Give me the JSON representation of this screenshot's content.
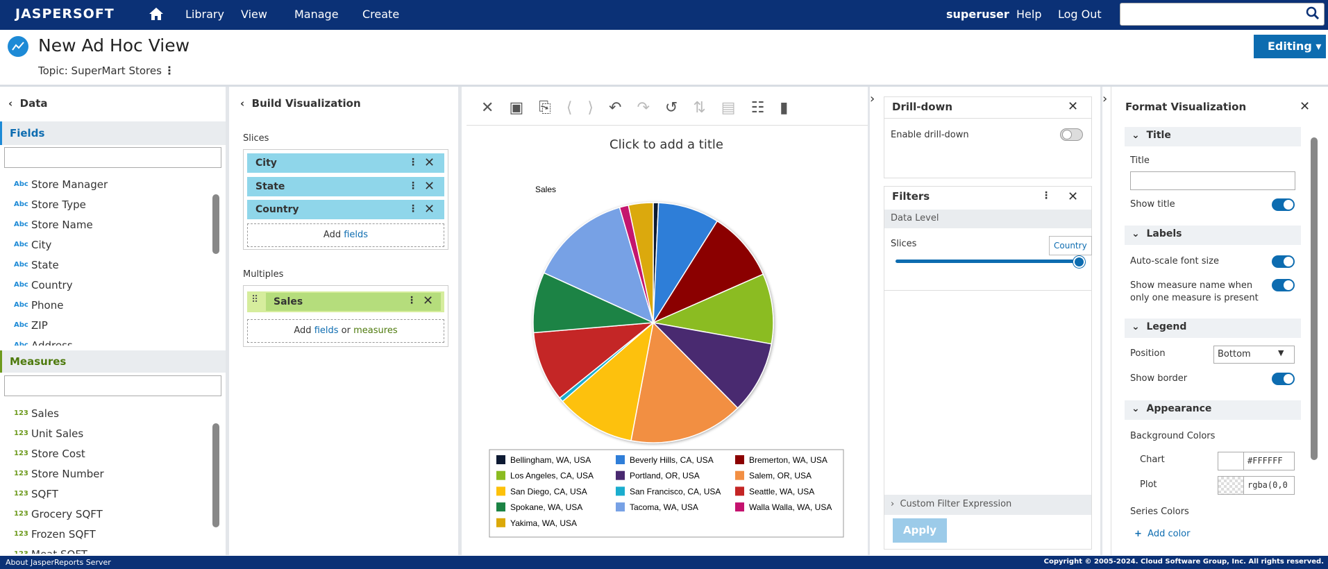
{
  "nav": {
    "brand": "JASPERSOFT",
    "items": [
      "Library",
      "View",
      "Manage",
      "Create"
    ],
    "user": "superuser",
    "help": "Help",
    "logout": "Log Out"
  },
  "header": {
    "title": "New Ad Hoc View",
    "topic": "Topic: SuperMart Stores",
    "mode": "Editing"
  },
  "data_panel": {
    "title": "Data",
    "fields_title": "Fields",
    "field_badge": "Abc",
    "fields": [
      "Store Manager",
      "Store Type",
      "Store Name",
      "City",
      "State",
      "Country",
      "Phone",
      "ZIP",
      "Address"
    ],
    "measures_title": "Measures",
    "measure_badge": "123",
    "measures": [
      "Sales",
      "Unit Sales",
      "Store Cost",
      "Store Number",
      "SQFT",
      "Grocery SQFT",
      "Frozen SQFT",
      "Meat SQFT"
    ]
  },
  "build": {
    "title": "Build Visualization",
    "slices_label": "Slices",
    "slices": [
      "City",
      "State",
      "Country"
    ],
    "add": "Add",
    "fields": "fields",
    "or": "or",
    "measures": "measures",
    "multiples_label": "Multiples",
    "multiples": [
      "Sales"
    ]
  },
  "chart_data": {
    "type": "pie",
    "title": "Click to add a title",
    "measure": "Sales",
    "legend": "bottom",
    "categories": [
      "Bellingham, WA, USA",
      "Beverly Hills, CA, USA",
      "Bremerton, WA, USA",
      "Los Angeles, CA, USA",
      "Portland, OR, USA",
      "Salem, OR, USA",
      "San Diego, CA, USA",
      "San Francisco, CA, USA",
      "Seattle, WA, USA",
      "Spokane, WA, USA",
      "Tacoma, WA, USA",
      "Walla Walla, WA, USA",
      "Yakima, WA, USA"
    ],
    "values": [
      0.7,
      8.2,
      9.4,
      9.4,
      9.7,
      15.3,
      10.6,
      0.6,
      9.4,
      8.1,
      13.6,
      1.2,
      3.3
    ],
    "colors": [
      "#0d1a33",
      "#2f7ed8",
      "#8b0000",
      "#8bbc21",
      "#492970",
      "#f28f43",
      "#fdc10a",
      "#1aadce",
      "#c42525",
      "#1b8344",
      "#77a1e5",
      "#c4126e",
      "#dba909"
    ]
  },
  "drilldown": {
    "title": "Drill-down",
    "enable": "Enable drill-down"
  },
  "filters": {
    "title": "Filters",
    "level": "Data Level",
    "slices": "Slices",
    "tooltip": "Country",
    "custom": "Custom Filter Expression",
    "apply": "Apply"
  },
  "format": {
    "title": "Format Visualization",
    "title_section": "Title",
    "title_label": "Title",
    "show_title": "Show title",
    "labels_section": "Labels",
    "auto_scale": "Auto-scale font size",
    "show_measure": "Show measure name when only one measure is present",
    "legend_section": "Legend",
    "position": "Position",
    "position_value": "Bottom",
    "show_border": "Show border",
    "appearance": "Appearance",
    "bg": "Background Colors",
    "chart": "Chart",
    "chart_color": "#FFFFFF",
    "plot": "Plot",
    "plot_color": "rgba(0,0",
    "series_colors": "Series Colors",
    "add_color": "Add color"
  },
  "footer": {
    "about": "About JasperReports Server",
    "copyright": "Copyright © 2005-2024. Cloud Software Group, Inc. All rights reserved."
  }
}
